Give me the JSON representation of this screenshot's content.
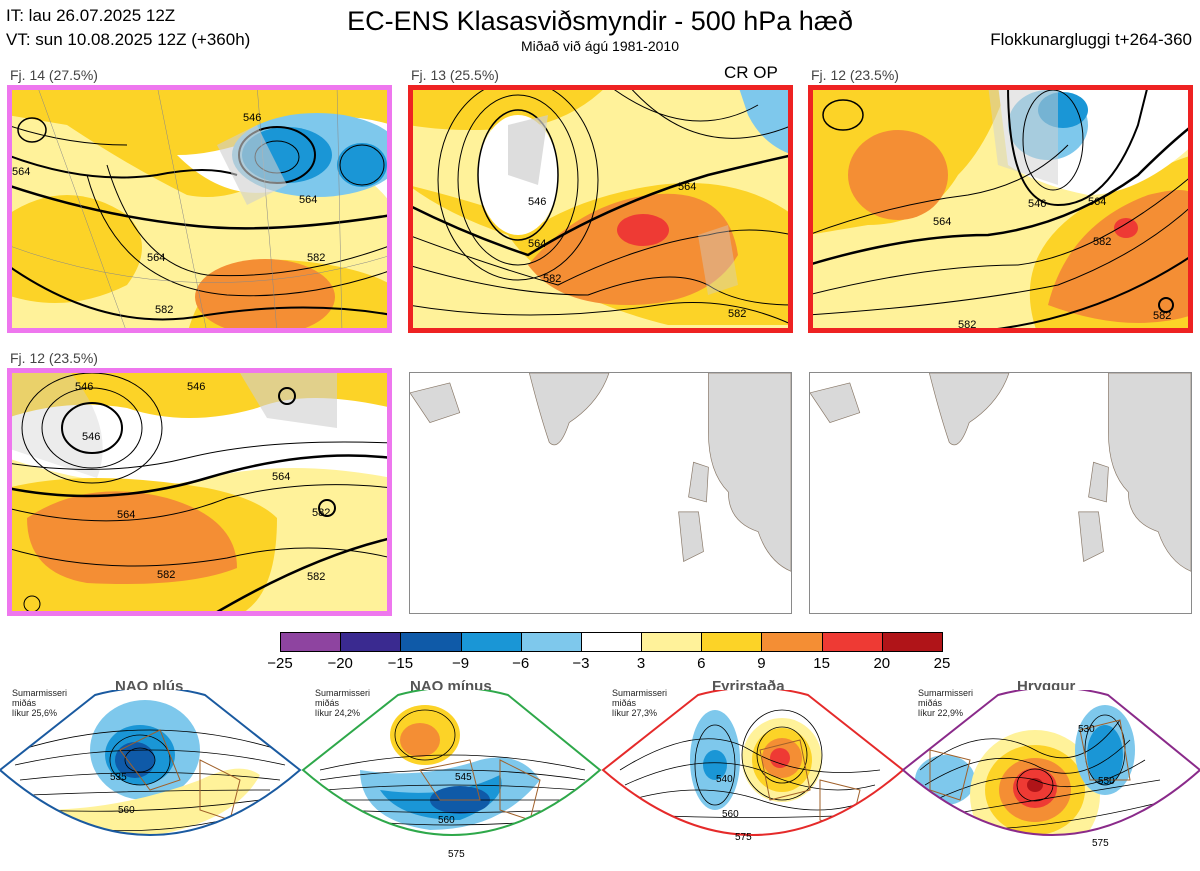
{
  "header": {
    "it_line": "IT: lau 26.07.2025 12Z",
    "vt_line": "VT: sun 10.08.2025 12Z  (+360h)",
    "title": "EC-ENS Klasasviðsmyndir - 500 hPa hæð",
    "subtitle": "Miðað við ágú 1981-2010",
    "window": "Flokkunargluggi t+264-360"
  },
  "panels": [
    {
      "label": "Fj. 14 (27.5%)",
      "border_color": "#ee77ee",
      "tag": "",
      "contours": [
        "546",
        "564",
        "582",
        "582",
        "564",
        "564"
      ]
    },
    {
      "label": "Fj. 13 (25.5%)",
      "border_color": "#ee2222",
      "tag": "CR OP",
      "contours": [
        "546",
        "564",
        "564",
        "582",
        "582"
      ]
    },
    {
      "label": "Fj. 12 (23.5%)",
      "border_color": "#ee2222",
      "tag": "",
      "contours": [
        "546",
        "564",
        "564",
        "582",
        "582",
        "582"
      ]
    },
    {
      "label": "Fj. 12 (23.5%)",
      "border_color": "#ee77ee",
      "tag": "",
      "contours": [
        "546",
        "546",
        "546",
        "564",
        "564",
        "582",
        "582",
        "582"
      ]
    }
  ],
  "colorbar": {
    "ticks": [
      "−25",
      "−20",
      "−15",
      "−9",
      "−6",
      "−3",
      "3",
      "6",
      "9",
      "15",
      "20",
      "25"
    ],
    "colors": [
      "#8e44a0",
      "#3a2a90",
      "#0f5aa8",
      "#1a96d6",
      "#7ec8ec",
      "#ffffff",
      "#fff29a",
      "#fcd327",
      "#f48e34",
      "#ee3a34",
      "#b01418"
    ]
  },
  "regimes": [
    {
      "name": "NAO plús",
      "note": "Sumarmisseri\nmiðás\nlíkur 25,6%",
      "frame_color": "#1a5aa0",
      "dot_color": "#1a5aa0",
      "contours": [
        "535",
        "560"
      ]
    },
    {
      "name": "NAO mínus",
      "note": "Sumarmisseri\nmiðás\nlíkur 24,2%",
      "frame_color": "#2ea84a",
      "dot_color": "#2ea84a",
      "contours": [
        "545",
        "560",
        "575"
      ]
    },
    {
      "name": "Fyrirstaða",
      "note": "Sumarmisseri\nmiðás\nlíkur 27,3%",
      "frame_color": "#e52a2a",
      "dot_color": "#e52a2a",
      "contours": [
        "540",
        "560",
        "575"
      ]
    },
    {
      "name": "Hryggur",
      "note": "Sumarmisseri\nmiðás\nlíkur 22,9%",
      "frame_color": "#8a2a8a",
      "dot_color": "#ee77ee",
      "contours": [
        "530",
        "550",
        "575"
      ]
    }
  ]
}
